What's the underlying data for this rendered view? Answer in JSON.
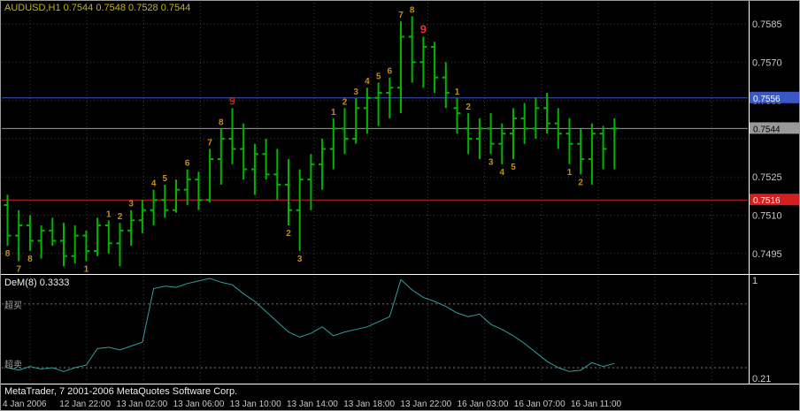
{
  "window": {
    "quote_line": "AUDUSD,H1  0.7544 0.7548 0.7528 0.7544",
    "status_bar": "MetaTrader, 7 2001-2006 MetaQuotes Software Corp."
  },
  "chart_data": {
    "type": "ohlc-bar",
    "symbol": "AUDUSD",
    "timeframe": "H1",
    "current_ohlc": {
      "open": "0.7544",
      "high": "0.7548",
      "low": "0.7528",
      "close": "0.7544"
    },
    "bar_color": "#00B400",
    "grid_color": "#3C3C3C",
    "axis_text_color": "#C8C8C8",
    "price_axis": {
      "view_max": 0.7593,
      "view_min": 0.7488,
      "ticks": [
        {
          "price": 0.7585,
          "label": "0.7585"
        },
        {
          "price": 0.757,
          "label": "0.7570"
        },
        {
          "price": 0.7555,
          "label": "0.7555"
        },
        {
          "price": 0.754,
          "label": ""
        },
        {
          "price": 0.7525,
          "label": "0.7525"
        },
        {
          "price": 0.751,
          "label": "0.7510"
        },
        {
          "price": 0.7495,
          "label": "0.7495"
        }
      ]
    },
    "hlines": [
      {
        "price": 0.7556,
        "label": "0.7556",
        "color": "#3A57C8",
        "text_color": "#FFFFFF"
      },
      {
        "price": 0.7544,
        "label": "0.7544",
        "color": "#9A9A9A",
        "text_color": "#000000"
      },
      {
        "price": 0.7516,
        "label": "0.7516",
        "color": "#D22020",
        "text_color": "#FFFFFF"
      }
    ],
    "ohlc": [
      [
        0.7514,
        0.7518,
        0.7498,
        0.7502
      ],
      [
        0.7502,
        0.7512,
        0.7492,
        0.7506
      ],
      [
        0.7506,
        0.751,
        0.7496,
        0.75
      ],
      [
        0.75,
        0.7506,
        0.7493,
        0.7504
      ],
      [
        0.7504,
        0.7509,
        0.7498,
        0.75
      ],
      [
        0.75,
        0.7507,
        0.749,
        0.7494
      ],
      [
        0.7494,
        0.7506,
        0.7491,
        0.7502
      ],
      [
        0.7502,
        0.7504,
        0.7492,
        0.7496
      ],
      [
        0.7496,
        0.7509,
        0.7494,
        0.7506
      ],
      [
        0.7506,
        0.7508,
        0.7495,
        0.7499
      ],
      [
        0.7499,
        0.7507,
        0.749,
        0.7504
      ],
      [
        0.7504,
        0.7512,
        0.7498,
        0.7508
      ],
      [
        0.7508,
        0.7516,
        0.7503,
        0.7512
      ],
      [
        0.7512,
        0.752,
        0.7506,
        0.7516
      ],
      [
        0.7516,
        0.7522,
        0.7509,
        0.7512
      ],
      [
        0.7512,
        0.7524,
        0.7511,
        0.752
      ],
      [
        0.752,
        0.7528,
        0.7514,
        0.7524
      ],
      [
        0.7524,
        0.7527,
        0.7512,
        0.7516
      ],
      [
        0.7516,
        0.7536,
        0.7515,
        0.7532
      ],
      [
        0.7532,
        0.7544,
        0.7522,
        0.754
      ],
      [
        0.754,
        0.7552,
        0.753,
        0.7536
      ],
      [
        0.7536,
        0.7546,
        0.7524,
        0.7528
      ],
      [
        0.7528,
        0.7538,
        0.7518,
        0.7534
      ],
      [
        0.7534,
        0.754,
        0.7524,
        0.7526
      ],
      [
        0.7526,
        0.7536,
        0.7516,
        0.7522
      ],
      [
        0.7522,
        0.7532,
        0.7506,
        0.7512
      ],
      [
        0.7512,
        0.7528,
        0.7496,
        0.7524
      ],
      [
        0.7524,
        0.7534,
        0.7512,
        0.753
      ],
      [
        0.753,
        0.754,
        0.752,
        0.7536
      ],
      [
        0.7536,
        0.7548,
        0.7528,
        0.7544
      ],
      [
        0.7544,
        0.7552,
        0.7534,
        0.754
      ],
      [
        0.754,
        0.7556,
        0.7538,
        0.7552
      ],
      [
        0.7552,
        0.756,
        0.7542,
        0.7556
      ],
      [
        0.7556,
        0.7562,
        0.7545,
        0.7558
      ],
      [
        0.7558,
        0.7564,
        0.7548,
        0.756
      ],
      [
        0.756,
        0.7586,
        0.755,
        0.758
      ],
      [
        0.758,
        0.7588,
        0.7562,
        0.757
      ],
      [
        0.757,
        0.758,
        0.756,
        0.7576
      ],
      [
        0.7576,
        0.7578,
        0.7558,
        0.7564
      ],
      [
        0.7564,
        0.757,
        0.7552,
        0.7558
      ],
      [
        0.7552,
        0.7556,
        0.7542,
        0.755
      ],
      [
        0.7544,
        0.755,
        0.7534,
        0.754
      ],
      [
        0.754,
        0.7548,
        0.7532,
        0.7544
      ],
      [
        0.7544,
        0.755,
        0.7534,
        0.7538
      ],
      [
        0.7538,
        0.7546,
        0.753,
        0.7542
      ],
      [
        0.7542,
        0.7552,
        0.7532,
        0.7548
      ],
      [
        0.7548,
        0.7554,
        0.7538,
        0.7544
      ],
      [
        0.7544,
        0.7556,
        0.754,
        0.7552
      ],
      [
        0.7552,
        0.7558,
        0.7542,
        0.7546
      ],
      [
        0.7546,
        0.7552,
        0.7536,
        0.7542
      ],
      [
        0.7542,
        0.7548,
        0.753,
        0.7538
      ],
      [
        0.7538,
        0.7544,
        0.7526,
        0.7532
      ],
      [
        0.7532,
        0.7546,
        0.7522,
        0.7542
      ],
      [
        0.7542,
        0.7545,
        0.7528,
        0.7536
      ],
      [
        0.7544,
        0.7548,
        0.7528,
        0.7544
      ]
    ],
    "annotations": [
      {
        "bar": 0,
        "text": "8",
        "pos": "below",
        "color": "#C09018"
      },
      {
        "bar": 1,
        "text": "7",
        "pos": "below",
        "color": "#C09018"
      },
      {
        "bar": 2,
        "text": "8",
        "pos": "below",
        "color": "#C09018"
      },
      {
        "bar": 7,
        "text": "1",
        "pos": "below",
        "color": "#C09018"
      },
      {
        "bar": 9,
        "text": "1",
        "pos": "above",
        "color": "#C09018"
      },
      {
        "bar": 10,
        "text": "2",
        "pos": "above",
        "color": "#C09018"
      },
      {
        "bar": 11,
        "text": "3",
        "pos": "above",
        "color": "#C09018"
      },
      {
        "bar": 13,
        "text": "4",
        "pos": "above",
        "color": "#C09018"
      },
      {
        "bar": 14,
        "text": "5",
        "pos": "above",
        "color": "#C09018"
      },
      {
        "bar": 16,
        "text": "6",
        "pos": "above",
        "color": "#C09018"
      },
      {
        "bar": 18,
        "text": "7",
        "pos": "above",
        "color": "#C09018"
      },
      {
        "bar": 19,
        "text": "8",
        "pos": "above",
        "color": "#C09018"
      },
      {
        "bar": 20,
        "text": "9",
        "pos": "above",
        "color": "#A83232",
        "size": 12
      },
      {
        "bar": 25,
        "text": "2",
        "pos": "below",
        "color": "#C09018"
      },
      {
        "bar": 26,
        "text": "3",
        "pos": "below",
        "color": "#C09018"
      },
      {
        "bar": 29,
        "text": "1",
        "pos": "above",
        "color": "#C09018"
      },
      {
        "bar": 30,
        "text": "2",
        "pos": "above",
        "color": "#C09018"
      },
      {
        "bar": 31,
        "text": "3",
        "pos": "above",
        "color": "#C09018"
      },
      {
        "bar": 32,
        "text": "4",
        "pos": "above",
        "color": "#C09018"
      },
      {
        "bar": 33,
        "text": "5",
        "pos": "above",
        "color": "#C09018"
      },
      {
        "bar": 34,
        "text": "6",
        "pos": "above",
        "color": "#C09018"
      },
      {
        "bar": 35,
        "text": "7",
        "pos": "above",
        "color": "#C09018"
      },
      {
        "bar": 36,
        "text": "8",
        "pos": "above",
        "color": "#C09018"
      },
      {
        "bar": 37,
        "text": "9",
        "pos": "above",
        "color": "#FF2A2A",
        "size": 13
      },
      {
        "bar": 40,
        "text": "1",
        "pos": "above",
        "color": "#C09018"
      },
      {
        "bar": 41,
        "text": "2",
        "pos": "above",
        "color": "#C09018"
      },
      {
        "bar": 43,
        "text": "3",
        "pos": "below",
        "color": "#C09018"
      },
      {
        "bar": 44,
        "text": "4",
        "pos": "below",
        "color": "#C09018"
      },
      {
        "bar": 45,
        "text": "5",
        "pos": "below",
        "color": "#C09018"
      },
      {
        "bar": 50,
        "text": "1",
        "pos": "below",
        "color": "#C09018"
      },
      {
        "bar": 51,
        "text": "2",
        "pos": "below",
        "color": "#C09018"
      }
    ],
    "time_axis": {
      "labels": [
        "4 Jan 2006",
        "12 Jan 22:00",
        "13 Jan 02:00",
        "13 Jan 06:00",
        "13 Jan 10:00",
        "13 Jan 14:00",
        "13 Jan 18:00",
        "13 Jan 22:00",
        "16 Jan 03:00",
        "16 Jan 07:00",
        "16 Jan 11:00"
      ]
    },
    "indicator": {
      "name": "DeM(8)",
      "value": "0.3333",
      "value_label": "DeM(8) 0.3333",
      "line_color": "#2FA0A0",
      "range": [
        0.21,
        1.0
      ],
      "max_label": "1",
      "min_label": "0.21",
      "levels": [
        0.8,
        0.3
      ],
      "overbought_label": "超买",
      "oversold_label": "超卖",
      "values": [
        0.3,
        0.28,
        0.31,
        0.29,
        0.3,
        0.27,
        0.3,
        0.32,
        0.45,
        0.46,
        0.44,
        0.47,
        0.5,
        0.92,
        0.94,
        0.93,
        0.96,
        0.98,
        1.0,
        0.97,
        0.95,
        0.88,
        0.82,
        0.74,
        0.66,
        0.58,
        0.54,
        0.57,
        0.62,
        0.55,
        0.58,
        0.6,
        0.62,
        0.66,
        0.7,
        0.99,
        0.91,
        0.85,
        0.82,
        0.78,
        0.73,
        0.7,
        0.72,
        0.64,
        0.6,
        0.55,
        0.49,
        0.42,
        0.35,
        0.3,
        0.27,
        0.28,
        0.34,
        0.31,
        0.3333
      ]
    }
  }
}
